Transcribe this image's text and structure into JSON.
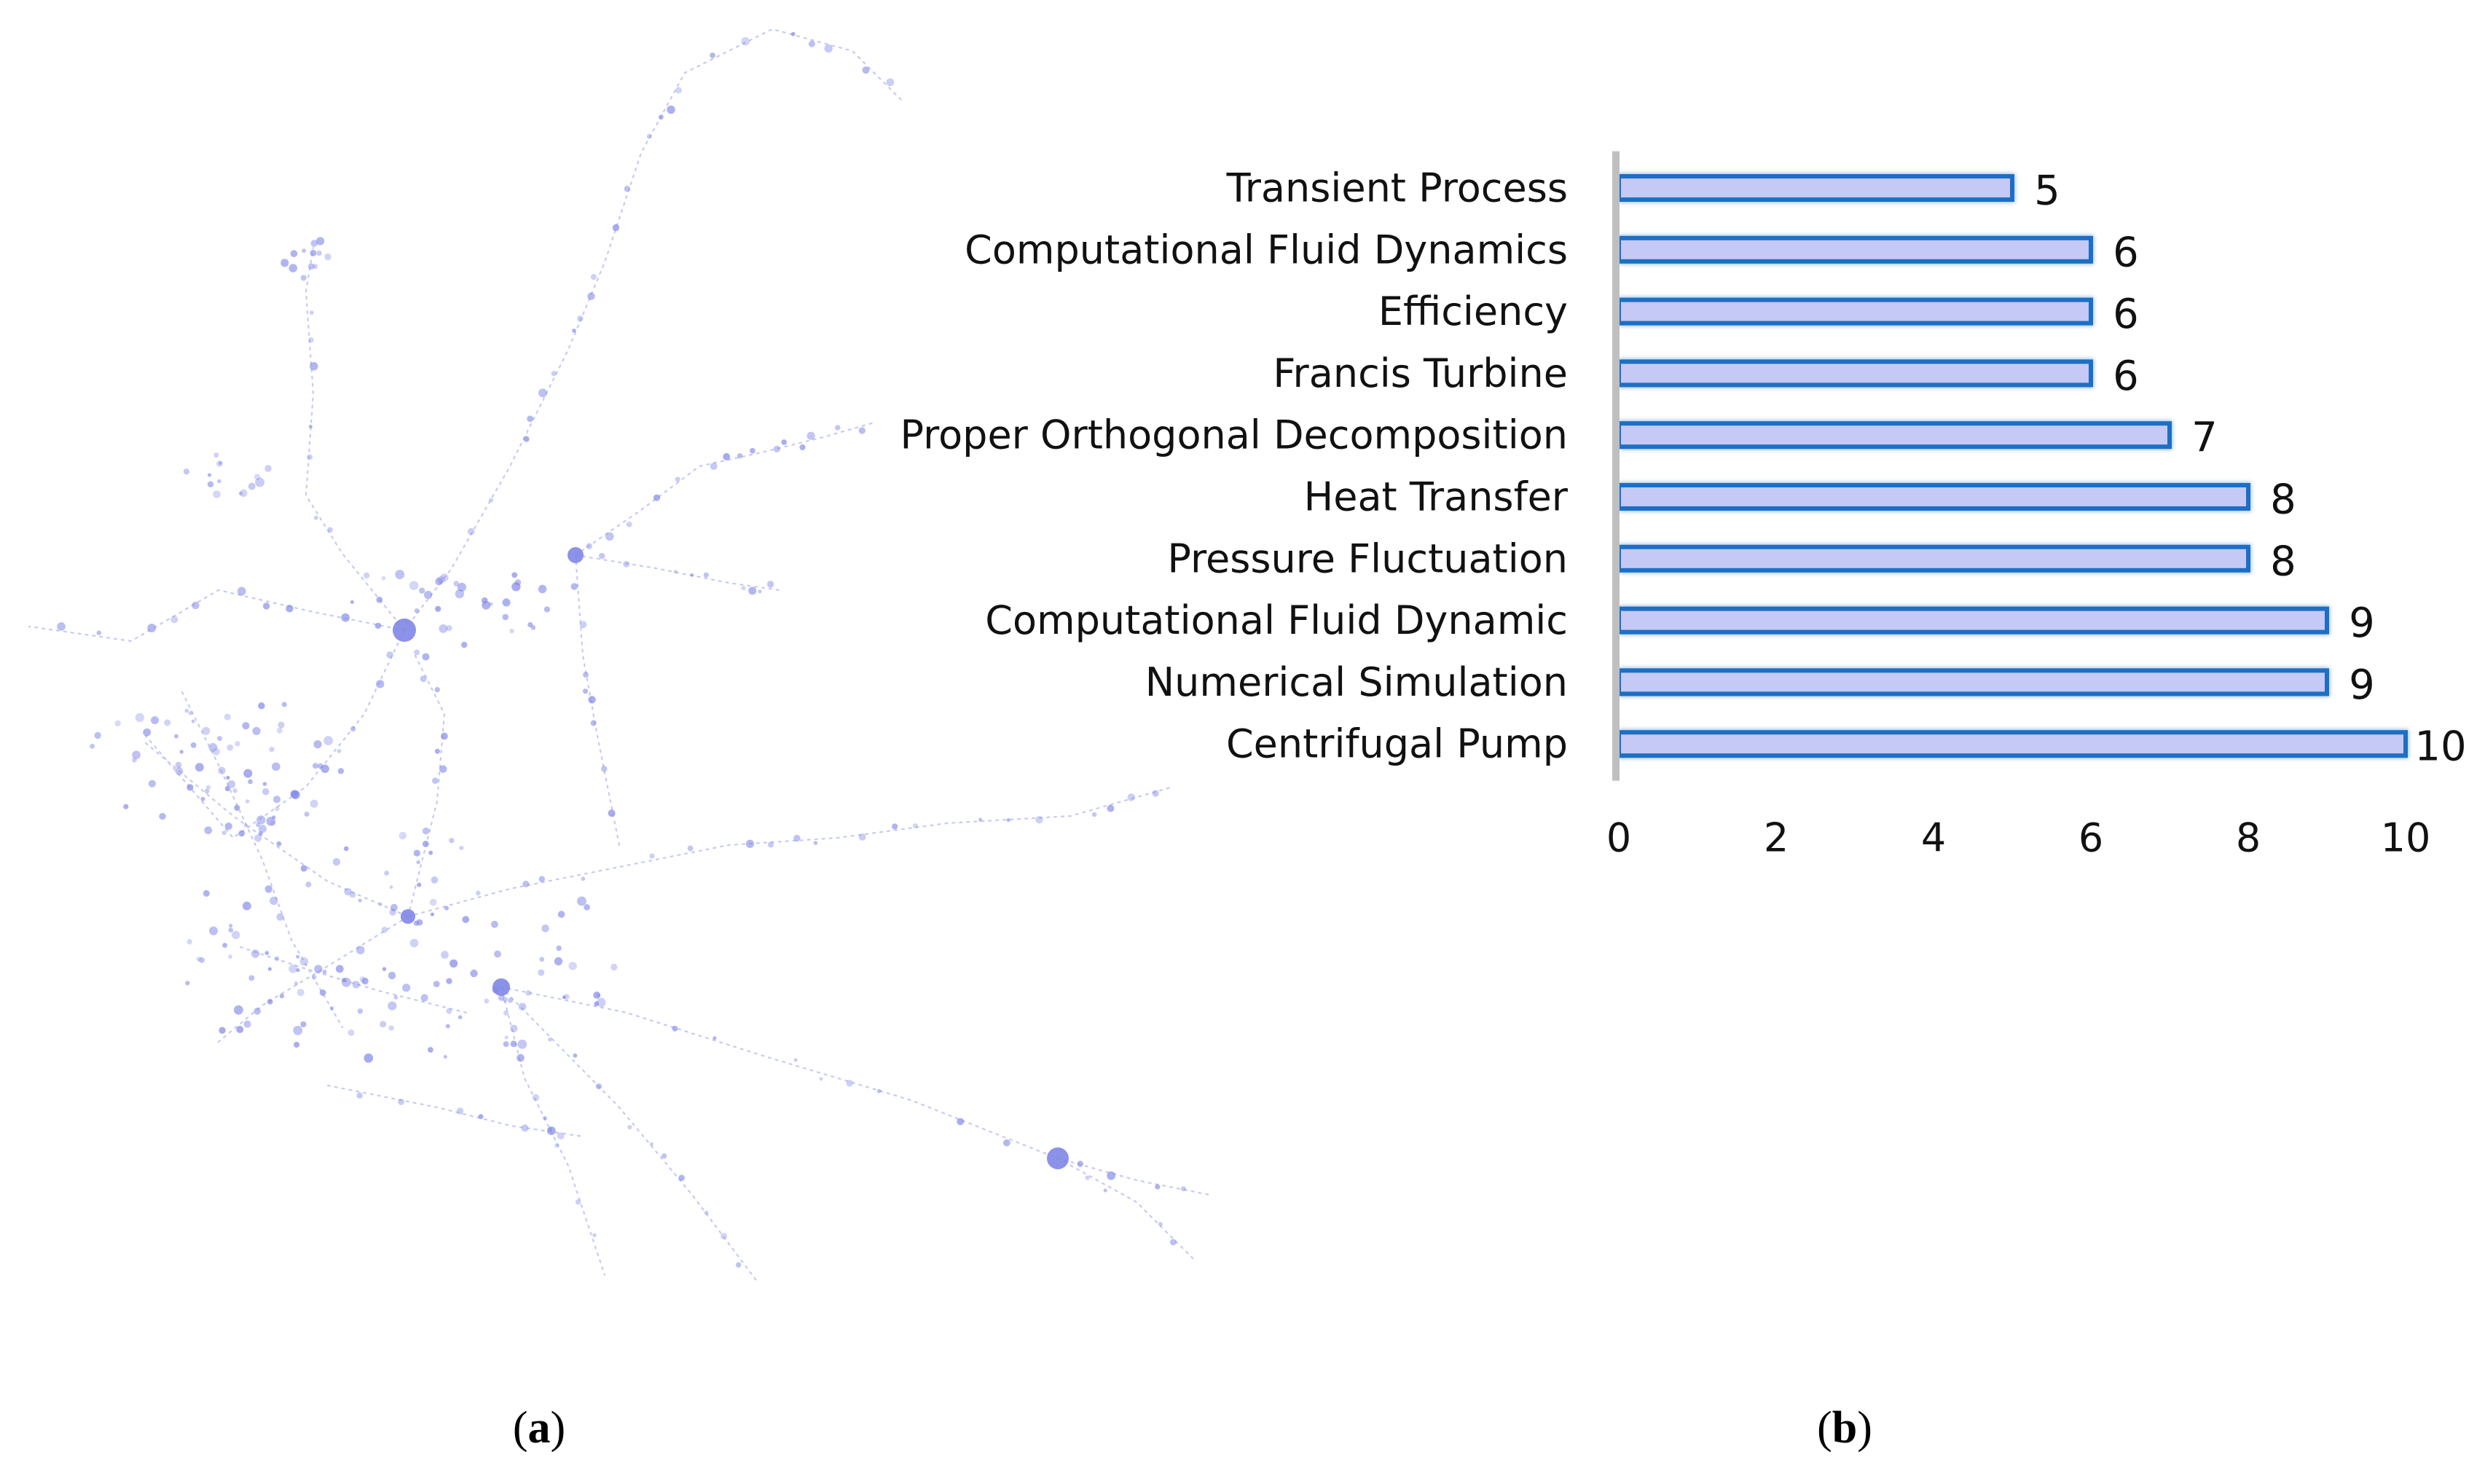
{
  "panel_a": {
    "caption_open": "(",
    "caption_letter": "a",
    "caption_close": ")",
    "node_color": "#7f86e6",
    "edge_color": "#c6caf4"
  },
  "panel_b": {
    "caption_open": "(",
    "caption_letter": "b",
    "caption_close": ")"
  },
  "chart_data": {
    "type": "bar",
    "orientation": "horizontal",
    "title": "",
    "xlabel": "",
    "ylabel": "",
    "categories": [
      "Transient Process",
      "Computational Fluid Dynamics",
      "Efficiency",
      "Francis Turbine",
      "Proper Orthogonal Decomposition",
      "Heat Transfer",
      "Pressure Fluctuation",
      "Computational Fluid Dynamic",
      "Numerical Simulation",
      "Centrifugal Pump"
    ],
    "values": [
      5,
      6,
      6,
      6,
      7,
      8,
      8,
      9,
      9,
      10
    ],
    "xlim": [
      0,
      10
    ],
    "xticks": [
      0,
      2,
      4,
      6,
      8,
      10
    ],
    "grid": false,
    "legend": "none",
    "bar_fill": "#c5c9f5",
    "bar_edge": "#1c6fc4",
    "axis_color": "#bfbfbf"
  }
}
